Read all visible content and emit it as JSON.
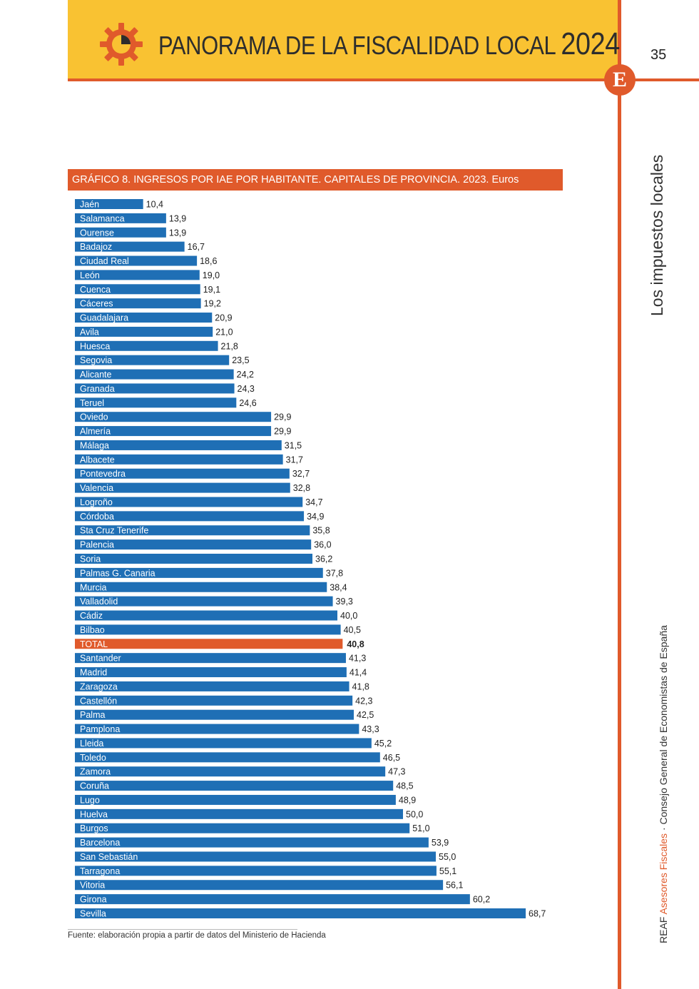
{
  "header": {
    "title": "PANORAMA DE LA FISCALIDAD LOCAL",
    "year": "2024",
    "page_number": "35",
    "logo_letter": "E"
  },
  "sidebar": {
    "section_title": "Los impuestos locales",
    "footer_prefix": "REAF",
    "footer_highlight": "Asesores Fiscales",
    "footer_suffix": "· Consejo General de Economistas de España"
  },
  "colors": {
    "accent": "#e05a2b",
    "header_yellow": "#f9c232",
    "bar_blue": "#1f6fb5",
    "total_bar": "#e05a2b"
  },
  "icons": {
    "header_icon": "gear-pie-icon"
  },
  "chart_data": {
    "type": "bar",
    "orientation": "horizontal",
    "title": "GRÁFICO 8. INGRESOS POR IAE POR HABITANTE. CAPITALES DE PROVINCIA. 2023. Euros",
    "categories": [
      "Jaén",
      "Salamanca",
      "Ourense",
      "Badajoz",
      "Ciudad Real",
      "León",
      "Cuenca",
      "Cáceres",
      "Guadalajara",
      "Avila",
      "Huesca",
      "Segovia",
      "Alicante",
      "Granada",
      "Teruel",
      "Oviedo",
      "Almería",
      "Málaga",
      "Albacete",
      "Pontevedra",
      "Valencia",
      "Logroño",
      "Córdoba",
      "Sta Cruz Tenerife",
      "Palencia",
      "Soria",
      "Palmas  G. Canaria",
      "Murcia",
      "Valladolid",
      "Cádiz",
      "Bilbao",
      "TOTAL",
      "Santander",
      "Madrid",
      "Zaragoza",
      "Castellón",
      "Palma",
      "Pamplona",
      "Lleida",
      "Toledo",
      "Zamora",
      "Coruña",
      "Lugo",
      "Huelva",
      "Burgos",
      "Barcelona",
      "San Sebastián",
      "Tarragona",
      "Vitoria",
      "Girona",
      "Sevilla"
    ],
    "values": [
      10.4,
      13.9,
      13.9,
      16.7,
      18.6,
      19.0,
      19.1,
      19.2,
      20.9,
      21.0,
      21.8,
      23.5,
      24.2,
      24.3,
      24.6,
      29.9,
      29.9,
      31.5,
      31.7,
      32.7,
      32.8,
      34.7,
      34.9,
      35.8,
      36.0,
      36.2,
      37.8,
      38.4,
      39.3,
      40.0,
      40.5,
      40.8,
      41.3,
      41.4,
      41.8,
      42.3,
      42.5,
      43.3,
      45.2,
      46.5,
      47.3,
      48.5,
      48.9,
      50.0,
      51.0,
      53.9,
      55.0,
      55.1,
      56.1,
      60.2,
      68.7
    ],
    "labels": [
      "10,4",
      "13,9",
      "13,9",
      "16,7",
      "18,6",
      "19,0",
      "19,1",
      "19,2",
      "20,9",
      "21,0",
      "21,8",
      "23,5",
      "24,2",
      "24,3",
      "24,6",
      "29,9",
      "29,9",
      "31,5",
      "31,7",
      "32,7",
      "32,8",
      "34,7",
      "34,9",
      "35,8",
      "36,0",
      "36,2",
      "37,8",
      "38,4",
      "39,3",
      "40,0",
      "40,5",
      "40,8",
      "41,3",
      "41,4",
      "41,8",
      "42,3",
      "42,5",
      "43,3",
      "45,2",
      "46,5",
      "47,3",
      "48,5",
      "48,9",
      "50,0",
      "51,0",
      "53,9",
      "55,0",
      "55,1",
      "56,1",
      "60,2",
      "68,7"
    ],
    "highlight_category": "TOTAL",
    "xlim": [
      0,
      70
    ],
    "grid": false,
    "legend": "none",
    "source": "Fuente: elaboración propia a partir de datos del Ministerio de Hacienda"
  }
}
